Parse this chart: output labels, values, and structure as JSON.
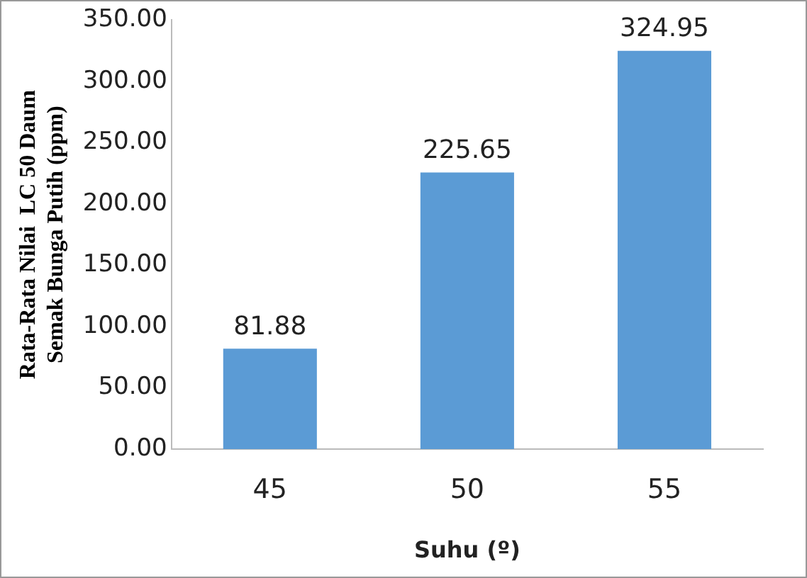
{
  "chart_data": {
    "type": "bar",
    "xlabel": "Suhu (º)",
    "ylabel": "Rata-Rata Nilai  LC 50 Daum\nSemak Bunga Putih (ppm)",
    "categories": [
      "45",
      "50",
      "55"
    ],
    "values": [
      81.88,
      225.65,
      324.95
    ],
    "color": "#5b9bd5",
    "ylim": [
      0,
      350
    ],
    "yticks": [
      {
        "value": 0,
        "label": "0.00"
      },
      {
        "value": 50,
        "label": "50.00"
      },
      {
        "value": 100,
        "label": "100.00"
      },
      {
        "value": 150,
        "label": "150.00"
      },
      {
        "value": 200,
        "label": "200.00"
      },
      {
        "value": 250,
        "label": "250.00"
      },
      {
        "value": 300,
        "label": "300.00"
      },
      {
        "value": 350,
        "label": "350.00"
      }
    ],
    "grid": false,
    "legend": false,
    "data_labels": true
  }
}
